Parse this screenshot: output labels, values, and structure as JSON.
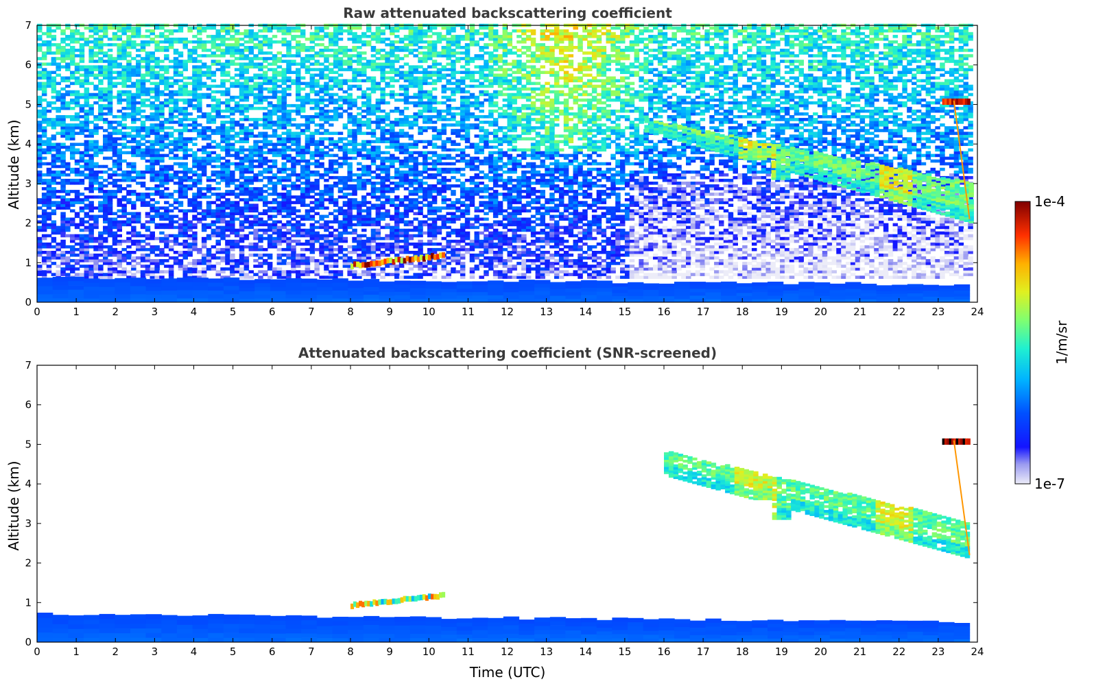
{
  "chart_data": [
    {
      "type": "heatmap",
      "title": "Raw attenuated backscattering coefficient",
      "xlabel": "",
      "ylabel": "Altitude (km)",
      "xlim": [
        0,
        24
      ],
      "ylim": [
        0,
        7
      ],
      "xticks": [
        "0",
        "1",
        "2",
        "3",
        "4",
        "5",
        "6",
        "7",
        "8",
        "9",
        "10",
        "11",
        "12",
        "13",
        "14",
        "15",
        "16",
        "17",
        "18",
        "19",
        "20",
        "21",
        "22",
        "23",
        "24"
      ],
      "yticks": [
        "0",
        "1",
        "2",
        "3",
        "4",
        "5",
        "6",
        "7"
      ],
      "data_time_end": 23.8,
      "features": [
        {
          "kind": "boundary_layer",
          "x": [
            0,
            23.8
          ],
          "top_km": [
            0.62,
            0.45
          ],
          "level": 0.22
        },
        {
          "kind": "aerosol_layer",
          "x": [
            8.0,
            10.4
          ],
          "base_km": [
            0.85,
            1.1
          ],
          "level": 0.85
        },
        {
          "kind": "cirrus_cloud",
          "x": [
            15.5,
            23.8
          ],
          "top_km": [
            4.6,
            3.0
          ],
          "base_km": [
            4.3,
            2.0
          ],
          "level": 0.62
        },
        {
          "kind": "cloud_patch",
          "x": [
            23.1,
            23.8
          ],
          "base_km": [
            5.0,
            5.0
          ],
          "level": 1.0
        },
        {
          "kind": "fall_streak",
          "x": [
            23.4,
            23.8
          ],
          "base_km": [
            5.1,
            2.1
          ],
          "level": 0.8
        }
      ],
      "noise_field": "increasing with altitude, strongest 12-15 UTC above 4 km"
    },
    {
      "type": "heatmap",
      "title": "Attenuated backscattering coefficient (SNR-screened)",
      "xlabel": "Time (UTC)",
      "ylabel": "Altitude (km)",
      "xlim": [
        0,
        24
      ],
      "ylim": [
        0,
        7
      ],
      "xticks": [
        "0",
        "1",
        "2",
        "3",
        "4",
        "5",
        "6",
        "7",
        "8",
        "9",
        "10",
        "11",
        "12",
        "13",
        "14",
        "15",
        "16",
        "17",
        "18",
        "19",
        "20",
        "21",
        "22",
        "23",
        "24"
      ],
      "yticks": [
        "0",
        "1",
        "2",
        "3",
        "4",
        "5",
        "6",
        "7"
      ],
      "data_time_end": 23.8,
      "features": [
        {
          "kind": "boundary_layer",
          "x": [
            0,
            23.8
          ],
          "top_km": [
            0.72,
            0.5
          ],
          "level": 0.22
        },
        {
          "kind": "aerosol_layer",
          "x": [
            8.0,
            10.4
          ],
          "base_km": [
            0.85,
            1.1
          ],
          "level": 0.6
        },
        {
          "kind": "cirrus_cloud",
          "x": [
            16.0,
            23.8
          ],
          "top_km": [
            4.8,
            3.0
          ],
          "base_km": [
            4.2,
            2.1
          ],
          "level": 0.6
        },
        {
          "kind": "cloud_patch",
          "x": [
            23.1,
            23.8
          ],
          "base_km": [
            5.0,
            5.0
          ],
          "level": 1.0
        },
        {
          "kind": "fall_streak",
          "x": [
            23.4,
            23.8
          ],
          "base_km": [
            5.1,
            2.2
          ],
          "level": 0.8
        }
      ]
    }
  ],
  "colorbar": {
    "label": "1/m/sr",
    "min_label": "1e-7",
    "max_label": "1e-4",
    "colormap": "jet with white-lavender low end"
  },
  "colors": {
    "title": "#3a3a3a",
    "axis": "#000000",
    "background": "#ffffff"
  }
}
